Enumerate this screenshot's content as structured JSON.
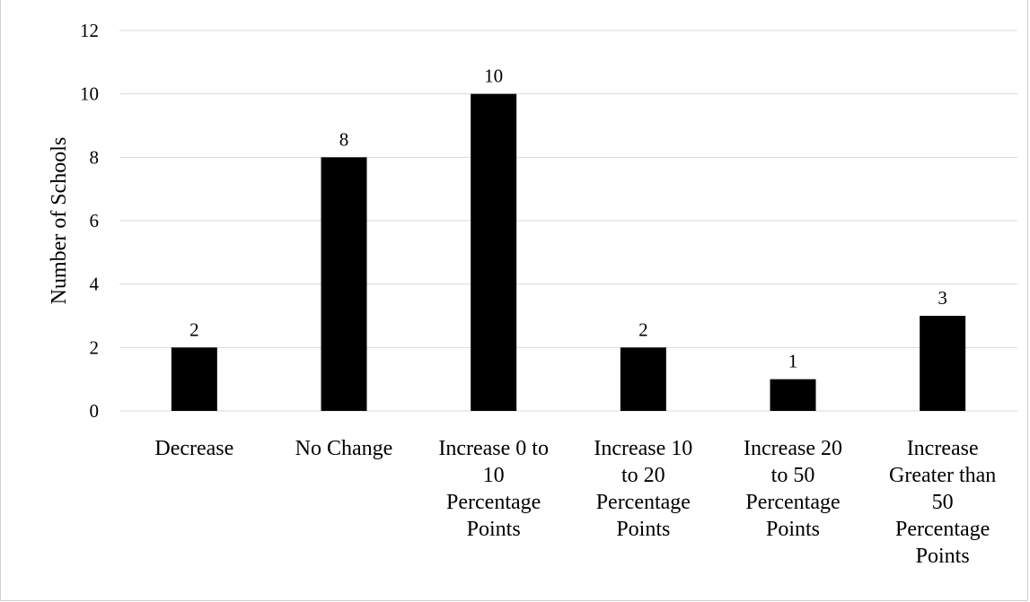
{
  "chart_data": {
    "type": "bar",
    "title": "",
    "xlabel": "",
    "ylabel": "Number of Schools",
    "ylim": [
      0,
      12
    ],
    "yticks": [
      0,
      2,
      4,
      6,
      8,
      10,
      12
    ],
    "grid": true,
    "legend": "none",
    "categories": [
      [
        "Decrease"
      ],
      [
        "No Change"
      ],
      [
        "Increase 0 to",
        "10",
        "Percentage",
        "Points"
      ],
      [
        "Increase 10",
        "to 20",
        "Percentage",
        "Points"
      ],
      [
        "Increase 20",
        "to 50",
        "Percentage",
        "Points"
      ],
      [
        "Increase",
        "Greater than",
        "50",
        "Percentage",
        "Points"
      ]
    ],
    "values": [
      2,
      8,
      10,
      2,
      1,
      3
    ],
    "data_labels": [
      "2",
      "8",
      "10",
      "2",
      "1",
      "3"
    ],
    "colors": {
      "bar": "#000000",
      "grid": "#d9d9d9",
      "text": "#000000"
    }
  }
}
